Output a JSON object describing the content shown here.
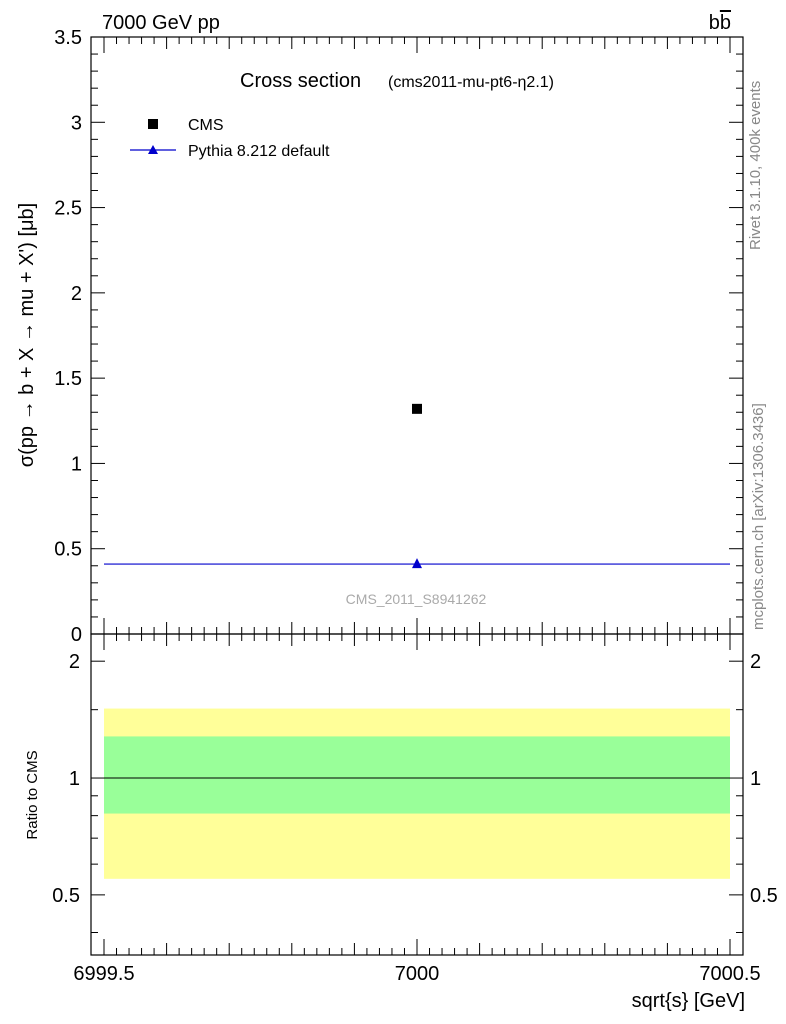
{
  "header": {
    "left": "7000 GeV pp",
    "right_base": "b",
    "right_bar": "b"
  },
  "side_labels": {
    "rivet": "Rivet 3.1.10,  400k events",
    "mcplots": "mcplots.cern.ch [arXiv:1306.3436]"
  },
  "chart_data": [
    {
      "type": "scatter",
      "title": "Cross section",
      "subtitle": "(cms2011-mu-pt6-η2.1)",
      "watermark": "CMS_2011_S8941262",
      "xlabel": "sqrt{s} [GeV]",
      "ylabel": "σ(pp → b + X → mu + X') [μb]",
      "xlim": [
        6999.5,
        7000.5
      ],
      "ylim": [
        0,
        3.5
      ],
      "y_ticks": [
        {
          "v": 0,
          "label": "0"
        },
        {
          "v": 0.5,
          "label": "0.5"
        },
        {
          "v": 1,
          "label": "1"
        },
        {
          "v": 1.5,
          "label": "1.5"
        },
        {
          "v": 2,
          "label": "2"
        },
        {
          "v": 2.5,
          "label": "2.5"
        },
        {
          "v": 3,
          "label": "3"
        },
        {
          "v": 3.5,
          "label": "3.5"
        }
      ],
      "legend_position": "top-left",
      "series": [
        {
          "name": "CMS",
          "marker": "square",
          "color": "#000000",
          "x": [
            7000
          ],
          "y": [
            1.32
          ]
        },
        {
          "name": "Pythia 8.212 default",
          "marker": "triangle",
          "color": "#0000cc",
          "x": [
            7000
          ],
          "y": [
            0.41
          ],
          "xrange": [
            6999.5,
            7000.5
          ]
        }
      ]
    },
    {
      "type": "area",
      "ylabel": "Ratio to CMS",
      "xlabel": "sqrt{s} [GeV]",
      "xlim": [
        6999.5,
        7000.5
      ],
      "ylim": [
        0.35,
        2.35
      ],
      "log_scale_y": true,
      "x_ticks": [
        {
          "v": 6999.5,
          "label": "6999.5"
        },
        {
          "v": 7000,
          "label": "7000"
        },
        {
          "v": 7000.5,
          "label": "7000.5"
        }
      ],
      "y_ticks": [
        {
          "v": 0.5,
          "label": "0.5"
        },
        {
          "v": 1,
          "label": "1"
        },
        {
          "v": 2,
          "label": "2"
        }
      ],
      "bands": [
        {
          "name": "outer",
          "color": "#ffff99",
          "low": 0.55,
          "high": 1.51
        },
        {
          "name": "inner",
          "color": "#99ff99",
          "low": 0.81,
          "high": 1.28
        }
      ],
      "reference_line": 1
    }
  ]
}
